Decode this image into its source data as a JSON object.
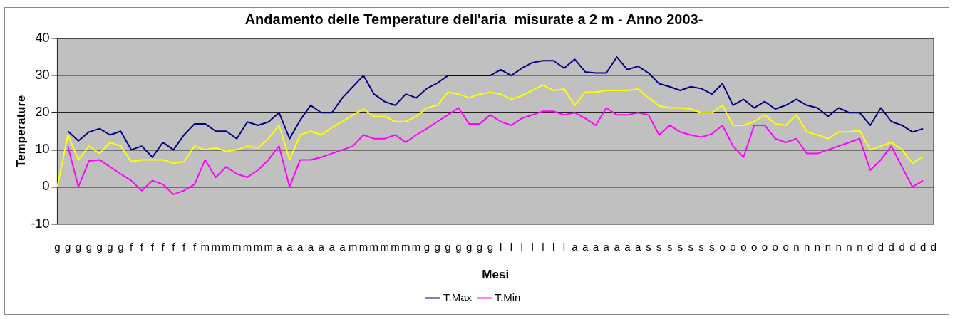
{
  "chart_data": {
    "type": "line",
    "title": "Andamento delle Temperature dell'aria  misurate a 2 m - Anno 2003-",
    "xlabel": "Mesi",
    "ylabel": "Temperature",
    "categories": [
      "g",
      "g",
      "g",
      "g",
      "g",
      "g",
      "g",
      "f",
      "f",
      "f",
      "f",
      "f",
      "f",
      "f",
      "m",
      "m",
      "m",
      "m",
      "m",
      "m",
      "m",
      "a",
      "a",
      "a",
      "a",
      "a",
      "a",
      "a",
      "m",
      "m",
      "m",
      "m",
      "m",
      "m",
      "m",
      "g",
      "g",
      "g",
      "g",
      "g",
      "g",
      "g",
      "l",
      "l",
      "l",
      "l",
      "l",
      "l",
      "l",
      "a",
      "a",
      "a",
      "a",
      "a",
      "a",
      "a",
      "s",
      "s",
      "s",
      "s",
      "s",
      "s",
      "s",
      "o",
      "o",
      "o",
      "o",
      "o",
      "o",
      "o",
      "n",
      "n",
      "n",
      "n",
      "n",
      "n",
      "n",
      "d",
      "d",
      "d",
      "d",
      "d",
      "d",
      "d"
    ],
    "series": [
      {
        "name": "T.Max",
        "color": "#000080",
        "values": [
          null,
          15,
          12.4,
          14.8,
          15.7,
          14,
          15,
          10,
          11,
          8,
          12,
          10,
          14,
          17,
          17,
          15,
          15,
          13,
          17.5,
          16.6,
          17.5,
          20,
          13,
          18,
          22,
          20,
          20,
          24,
          27,
          30,
          25,
          23,
          22,
          25,
          24,
          26.5,
          28,
          30,
          30,
          30,
          30,
          30,
          31.6,
          30,
          32,
          33.5,
          34,
          34,
          32,
          34.4,
          31,
          30.7,
          30.7,
          35,
          31.6,
          32.5,
          30.7,
          27.8,
          27,
          26,
          27,
          26.5,
          25,
          27.8,
          22,
          23.6,
          21.3,
          23,
          21,
          22,
          23.6,
          22,
          21.3,
          19,
          21.3,
          20,
          20,
          16.6,
          21.3,
          17.6,
          16.6,
          14.8,
          15.7,
          null
        ]
      },
      {
        "color": "#ffff00",
        "values": [
          0,
          14,
          7.3,
          11,
          9,
          12,
          11,
          6.8,
          7.3,
          7.3,
          7.3,
          6.4,
          6.8,
          11,
          10,
          10.5,
          9.6,
          10,
          11,
          10.5,
          13,
          16.6,
          7.3,
          14,
          15,
          14,
          16,
          17.6,
          19.4,
          21,
          19,
          19,
          17.6,
          17.6,
          19,
          21.3,
          22,
          25.5,
          25,
          24,
          25,
          25.5,
          25,
          23.6,
          24.6,
          26,
          27.4,
          26,
          26.4,
          22,
          25.5,
          25.5,
          26,
          26,
          26,
          26.4,
          24,
          21.8,
          21.3,
          21.3,
          21,
          20,
          20,
          22,
          16.6,
          16.6,
          17.6,
          19.4,
          17,
          16.6,
          19.4,
          14.8,
          14,
          13,
          14.8,
          14.8,
          15.2,
          10,
          11,
          12,
          10,
          6.4,
          8.2,
          null
        ]
      },
      {
        "name": "T.Min",
        "color": "#ff00ff",
        "values": [
          null,
          11,
          0,
          7,
          7.3,
          5.4,
          3.5,
          1.7,
          -1,
          1.7,
          0.7,
          -2,
          -1,
          0.7,
          7.3,
          2.6,
          5.4,
          3.5,
          2.6,
          4.5,
          7.3,
          11,
          0,
          7.3,
          7.3,
          8,
          9,
          10,
          11,
          14,
          13,
          13,
          14,
          12,
          14,
          15.7,
          17.6,
          19.4,
          21.3,
          17,
          17,
          19.4,
          17.6,
          16.6,
          18.5,
          19.4,
          20.4,
          20.4,
          19.4,
          20,
          18.5,
          16.6,
          21.3,
          19.4,
          19.4,
          20,
          19.4,
          14,
          16.6,
          14.8,
          14,
          13.4,
          14.3,
          16.6,
          11,
          8,
          16.6,
          16.6,
          13,
          12,
          13,
          9,
          9,
          10,
          11,
          12,
          13,
          4.5,
          7.3,
          11,
          5.4,
          0,
          1.7,
          null
        ]
      }
    ],
    "ylim": [
      -10,
      40
    ],
    "yticks": [
      -10,
      0,
      10,
      20,
      30,
      40
    ],
    "grid": "y",
    "legend": "bottom",
    "marker": "none",
    "line_style": "solid"
  }
}
